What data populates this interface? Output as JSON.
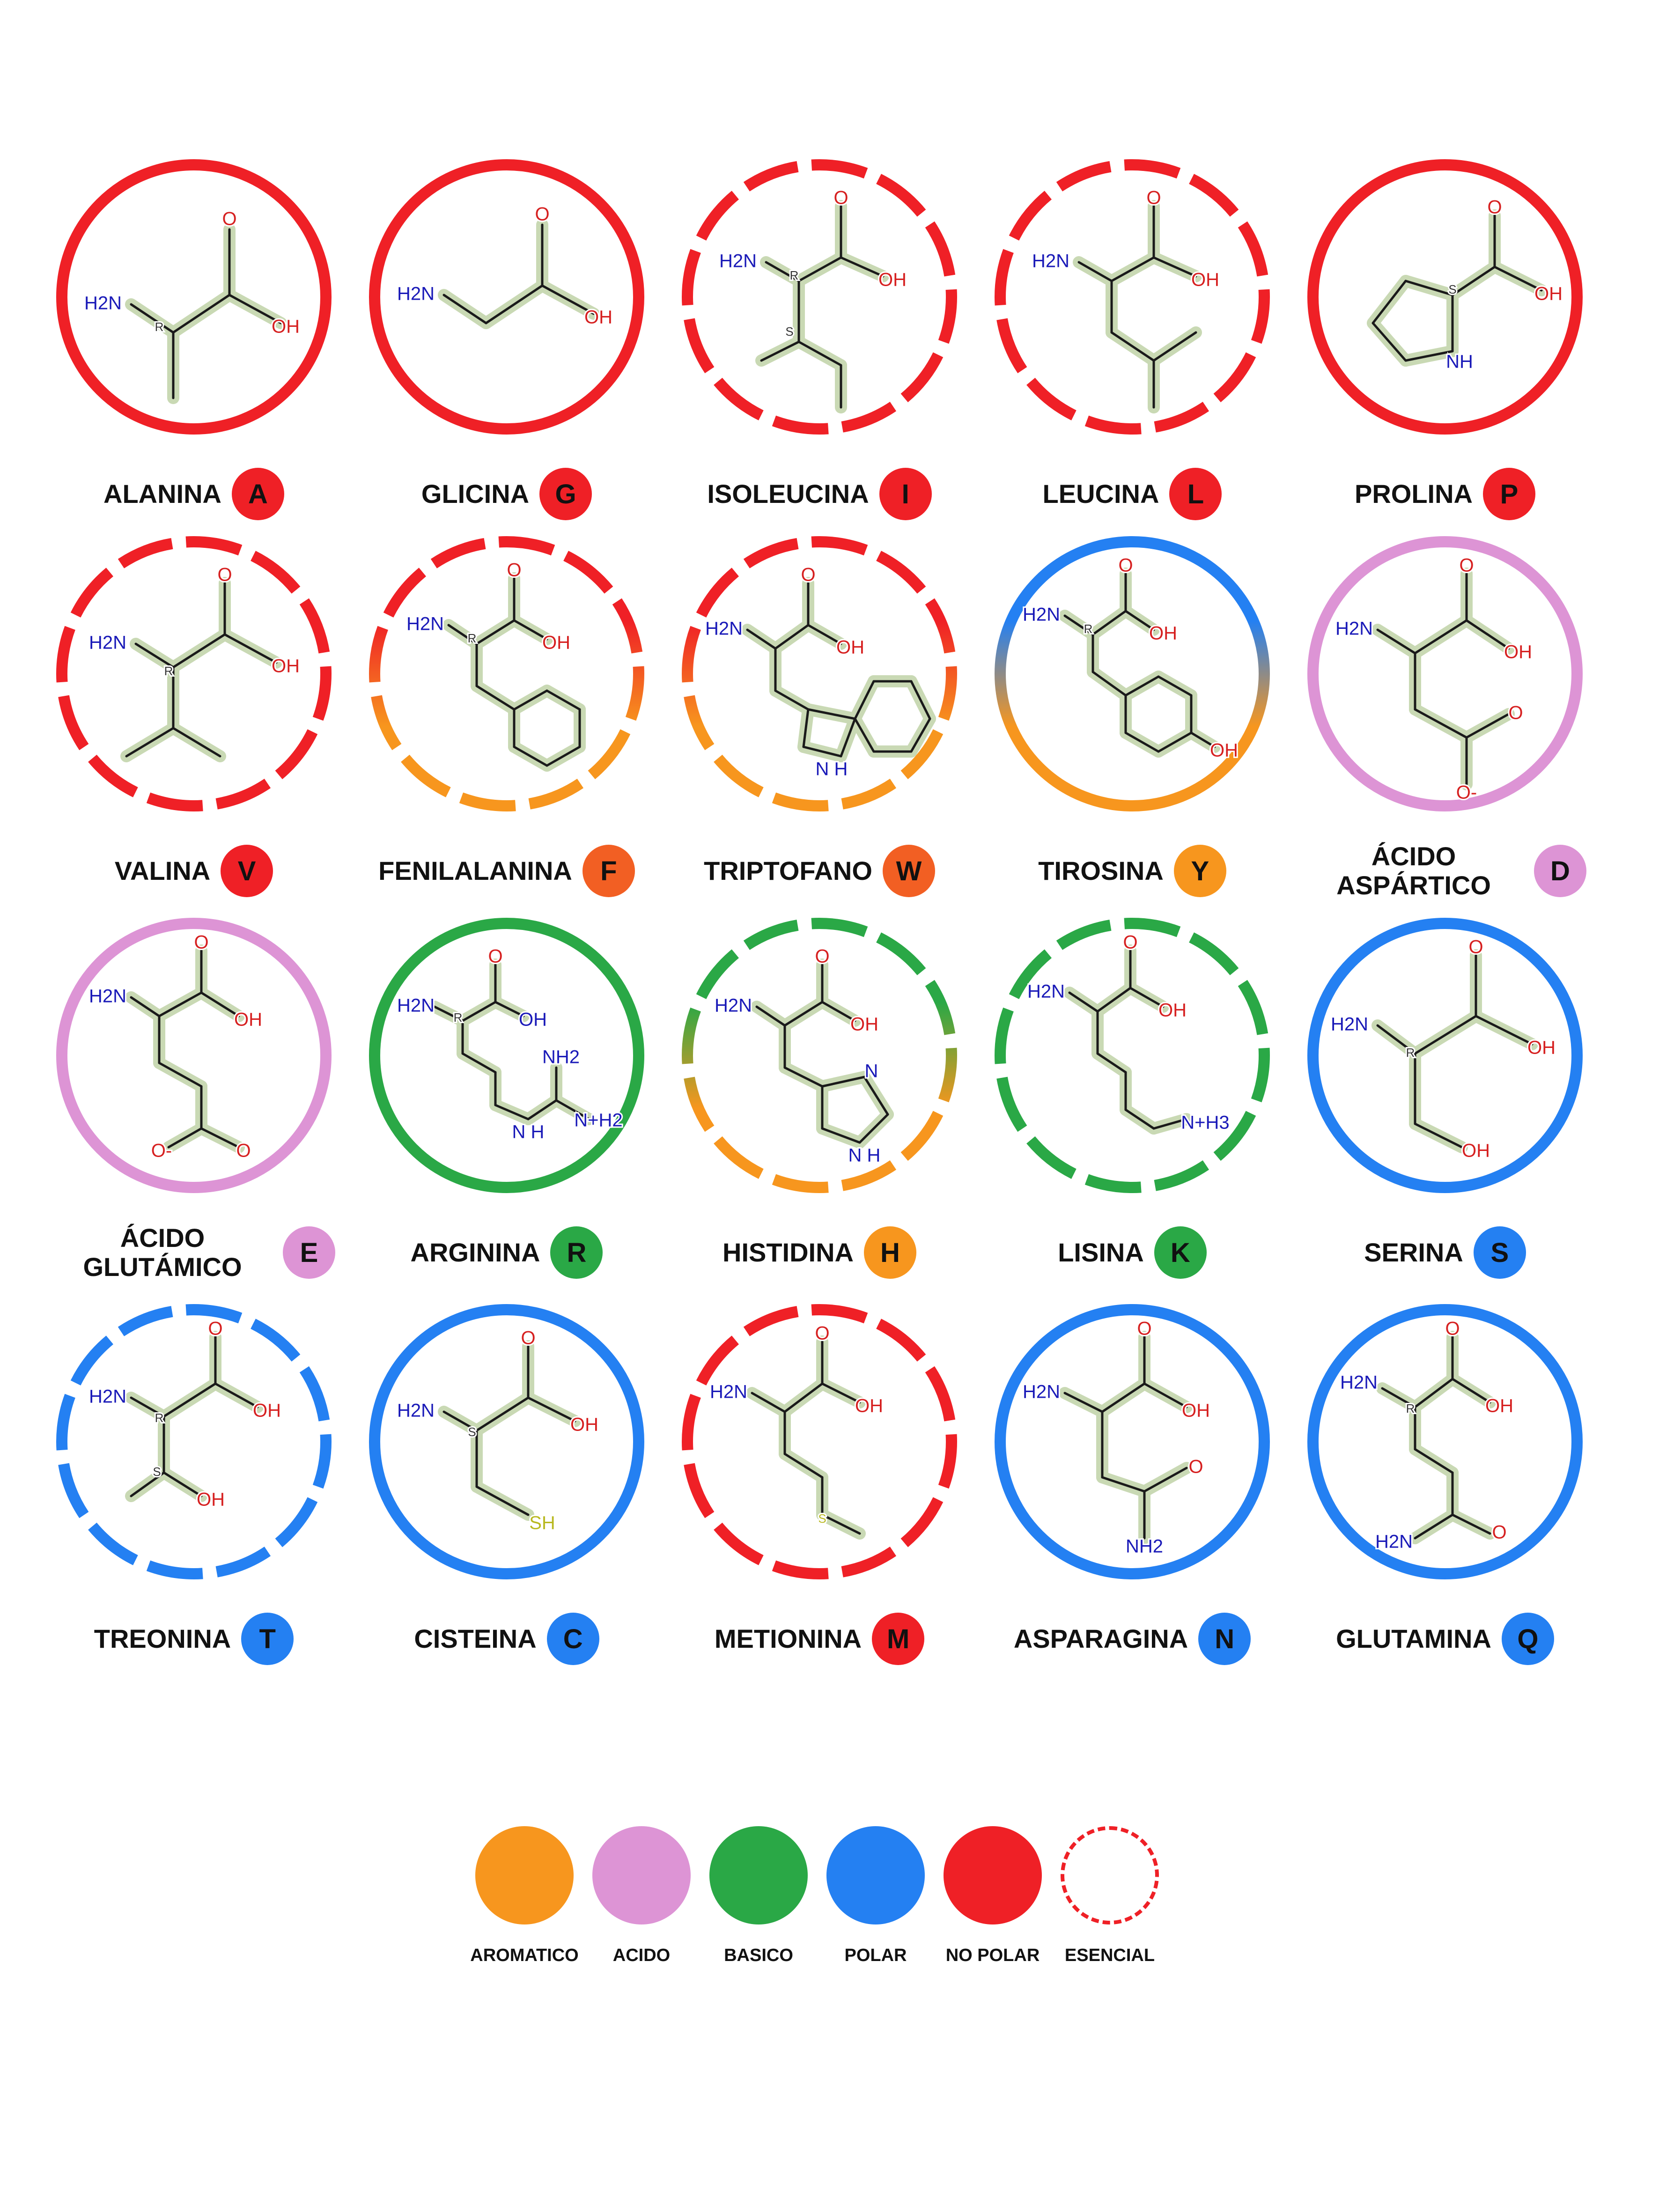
{
  "colors": {
    "aromatico": "#F7961E",
    "acido": "#DD94D5",
    "basico": "#2AA846",
    "polar": "#2480F2",
    "no_polar": "#EF2026",
    "badge_orange_red": "#F25F23"
  },
  "amino_acids": [
    {
      "name": "ALANINA",
      "letter": "A",
      "ring": "no_polar",
      "essential": false,
      "badge": "no_polar",
      "formula": [
        "H2N",
        "R",
        "O",
        "OH"
      ]
    },
    {
      "name": "GLICINA",
      "letter": "G",
      "ring": "no_polar",
      "essential": false,
      "badge": "no_polar",
      "formula": [
        "H2N",
        "O",
        "OH"
      ]
    },
    {
      "name": "ISOLEUCINA",
      "letter": "I",
      "ring": "no_polar",
      "essential": true,
      "badge": "no_polar",
      "formula": [
        "H2N",
        "R",
        "S",
        "O",
        "OH"
      ]
    },
    {
      "name": "LEUCINA",
      "letter": "L",
      "ring": "no_polar",
      "essential": true,
      "badge": "no_polar",
      "formula": [
        "H2N",
        "O",
        "OH"
      ]
    },
    {
      "name": "PROLINA",
      "letter": "P",
      "ring": "no_polar",
      "essential": false,
      "badge": "no_polar",
      "formula": [
        "S",
        "O",
        "OH",
        "NH"
      ]
    },
    {
      "name": "VALINA",
      "letter": "V",
      "ring": "no_polar",
      "essential": true,
      "badge": "no_polar",
      "formula": [
        "H2N",
        "R",
        "O",
        "OH"
      ]
    },
    {
      "name": "FENILALANINA",
      "letter": "F",
      "ring": "no_polar_aromatico",
      "essential": true,
      "badge": "badge_orange_red",
      "formula": [
        "H2N",
        "R",
        "O",
        "OH"
      ]
    },
    {
      "name": "TRIPTOFANO",
      "letter": "W",
      "ring": "no_polar_aromatico",
      "essential": true,
      "badge": "badge_orange_red",
      "formula": [
        "H2N",
        "O",
        "OH",
        "N H"
      ]
    },
    {
      "name": "TIROSINA",
      "letter": "Y",
      "ring": "polar_aromatico",
      "essential": false,
      "badge": "aromatico",
      "formula": [
        "H2N",
        "R",
        "O",
        "OH",
        "OH"
      ]
    },
    {
      "name": "ÁCIDO ASPÁRTICO",
      "letter": "D",
      "ring": "acido",
      "essential": false,
      "badge": "acido",
      "formula": [
        "H2N",
        "O",
        "OH",
        "O",
        "O-"
      ]
    },
    {
      "name": "ÁCIDO GLUTÁMICO",
      "letter": "E",
      "ring": "acido",
      "essential": false,
      "badge": "acido",
      "formula": [
        "H2N",
        "O",
        "OH",
        "O-",
        "O"
      ]
    },
    {
      "name": "ARGININA",
      "letter": "R",
      "ring": "basico",
      "essential": false,
      "badge": "basico",
      "formula": [
        "H2N",
        "R",
        "O",
        "OH",
        "NH2",
        "N+H2",
        "N H"
      ]
    },
    {
      "name": "HISTIDINA",
      "letter": "H",
      "ring": "basico_aromatico",
      "essential": true,
      "badge": "aromatico",
      "formula": [
        "H2N",
        "O",
        "OH",
        "N",
        "N H"
      ]
    },
    {
      "name": "LISINA",
      "letter": "K",
      "ring": "basico",
      "essential": true,
      "badge": "basico",
      "formula": [
        "H2N",
        "O",
        "OH",
        "N+H3"
      ]
    },
    {
      "name": "SERINA",
      "letter": "S",
      "ring": "polar",
      "essential": false,
      "badge": "polar",
      "formula": [
        "H2N",
        "R",
        "O",
        "OH",
        "OH"
      ]
    },
    {
      "name": "TREONINA",
      "letter": "T",
      "ring": "polar",
      "essential": true,
      "badge": "polar",
      "formula": [
        "H2N",
        "R",
        "S",
        "O",
        "OH",
        "OH"
      ]
    },
    {
      "name": "CISTEINA",
      "letter": "C",
      "ring": "polar",
      "essential": false,
      "badge": "polar",
      "formula": [
        "H2N",
        "S",
        "O",
        "OH",
        "SH"
      ]
    },
    {
      "name": "METIONINA",
      "letter": "M",
      "ring": "no_polar",
      "essential": true,
      "badge": "no_polar",
      "formula": [
        "H2N",
        "O",
        "OH",
        "S"
      ]
    },
    {
      "name": "ASPARAGINA",
      "letter": "N",
      "ring": "polar",
      "essential": false,
      "badge": "polar",
      "formula": [
        "H2N",
        "O",
        "OH",
        "O",
        "NH2"
      ]
    },
    {
      "name": "GLUTAMINA",
      "letter": "Q",
      "ring": "polar",
      "essential": false,
      "badge": "polar",
      "formula": [
        "H2N",
        "R",
        "O",
        "OH",
        "H2N",
        "O"
      ]
    }
  ],
  "legend": [
    {
      "label": "AROMATICO",
      "color": "aromatico",
      "dashed": false
    },
    {
      "label": "ACIDO",
      "color": "acido",
      "dashed": false
    },
    {
      "label": "BASICO",
      "color": "basico",
      "dashed": false
    },
    {
      "label": "POLAR",
      "color": "polar",
      "dashed": false
    },
    {
      "label": "NO POLAR",
      "color": "no_polar",
      "dashed": false
    },
    {
      "label": "ESENCIAL",
      "color": "no_polar",
      "dashed": true
    }
  ]
}
